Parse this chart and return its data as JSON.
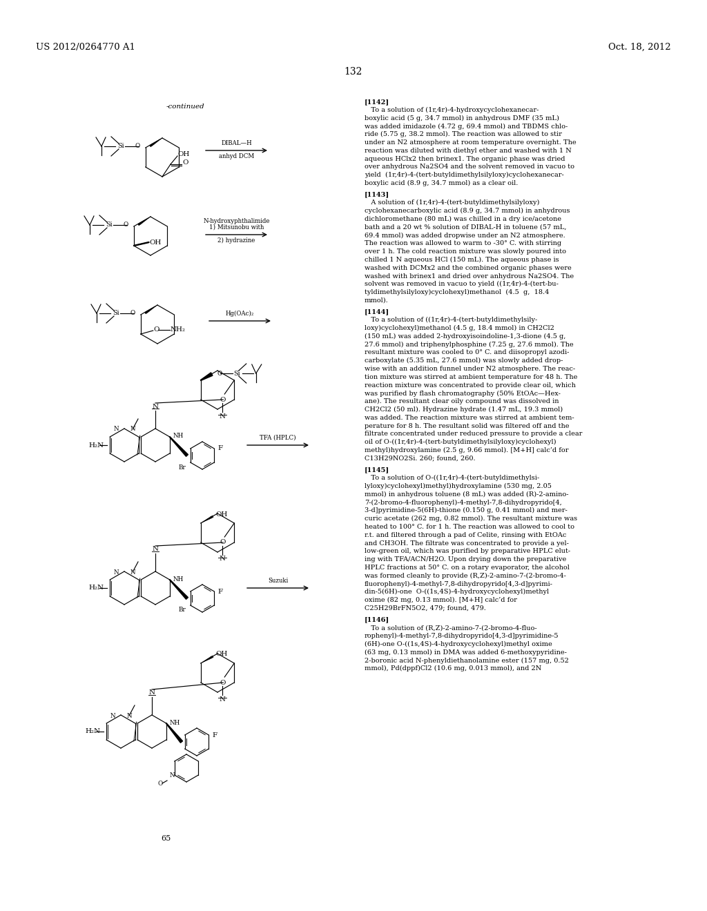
{
  "background_color": "#ffffff",
  "header_left": "US 2012/0264770 A1",
  "header_right": "Oct. 18, 2012",
  "page_number": "132",
  "continued_label": "-continued",
  "right_text": [
    {
      "tag": "[1142]",
      "body": "   To a solution of (1r,4r)-4-hydroxycyclohexanecar-\nboxylic acid (5 g, 34.7 mmol) in anhydrous DMF (35 mL)\nwas added imidazole (4.72 g, 69.4 mmol) and TBDMS chlo-\nride (5.75 g, 38.2 mmol). The reaction was allowed to stir\nunder an N2 atmosphere at room temperature overnight. The\nreaction was diluted with diethyl ether and washed with 1 N\naqueous HClx2 then brinex1. The organic phase was dried\nover anhydrous Na2SO4 and the solvent removed in vacuo to\nyield  (1r,4r)-4-(tert-butyldimethylsilyloxy)cyclohexanecar-\nboxylic acid (8.9 g, 34.7 mmol) as a clear oil."
    },
    {
      "tag": "[1143]",
      "body": "   A solution of (1r,4r)-4-(tert-butyldimethylsilyloxy)\ncyclohexanecarboxylic acid (8.9 g, 34.7 mmol) in anhydrous\ndichloromethane (80 mL) was chilled in a dry ice/acetone\nbath and a 20 wt % solution of DIBAL-H in toluene (57 mL,\n69.4 mmol) was added dropwise under an N2 atmosphere.\nThe reaction was allowed to warm to -30° C. with stirring\nover 1 h. The cold reaction mixture was slowly poured into\nchilled 1 N aqueous HCl (150 mL). The aqueous phase is\nwashed with DCMx2 and the combined organic phases were\nwashed with brinex1 and dried over anhydrous Na2SO4. The\nsolvent was removed in vacuo to yield ((1r,4r)-4-(tert-bu-\ntyldimethylsilyloxy)cyclohexyl)methanol  (4.5  g,  18.4\nmmol)."
    },
    {
      "tag": "[1144]",
      "body": "   To a solution of ((1r,4r)-4-(tert-butyldimethylsily-\nloxy)cyclohexyl)methanol (4.5 g, 18.4 mmol) in CH2Cl2\n(150 mL) was added 2-hydroxyisoindoline-1,3-dione (4.5 g,\n27.6 mmol) and triphenylphosphine (7.25 g, 27.6 mmol). The\nresultant mixture was cooled to 0° C. and diisopropyl azodi-\ncarboxylate (5.35 mL, 27.6 mmol) was slowly added drop-\nwise with an addition funnel under N2 atmosphere. The reac-\ntion mixture was stirred at ambient temperature for 48 h. The\nreaction mixture was concentrated to provide clear oil, which\nwas purified by flash chromatography (50% EtOAc—Hex-\nane). The resultant clear oily compound was dissolved in\nCH2Cl2 (50 ml). Hydrazine hydrate (1.47 mL, 19.3 mmol)\nwas added. The reaction mixture was stirred at ambient tem-\nperature for 8 h. The resultant solid was filtered off and the\nfiltrate concentrated under reduced pressure to provide a clear\noil of O-((1r,4r)-4-(tert-butyldimethylsilyloxy)cyclohexyl)\nmethyl)hydroxylamine (2.5 g, 9.66 mmol). [M+H] calc’d for\nC13H29NO2Si. 260; found, 260."
    },
    {
      "tag": "[1145]",
      "body": "   To a solution of O-((1r,4r)-4-(tert-butyldimethylsi-\nlyloxy)cyclohexyl)methyl)hydroxylamine (530 mg, 2.05\nmmol) in anhydrous toluene (8 mL) was added (R)-2-amino-\n7-(2-bromo-4-fluorophenyl)-4-methyl-7,8-dihydropyrido[4,\n3-d]pyrimidine-5(6H)-thione (0.150 g, 0.41 mmol) and mer-\ncuric acetate (262 mg, 0.82 mmol). The resultant mixture was\nheated to 100° C. for 1 h. The reaction was allowed to cool to\nr.t. and filtered through a pad of Celite, rinsing with EtOAc\nand CH3OH. The filtrate was concentrated to provide a yel-\nlow-green oil, which was purified by preparative HPLC elut-\ning with TFA/ACN/H2O. Upon drying down the preparative\nHPLC fractions at 50° C. on a rotary evaporator, the alcohol\nwas formed cleanly to provide (R,Z)-2-amino-7-(2-bromo-4-\nfluorophenyl)-4-methyl-7,8-dihydropyrido[4,3-d]pyrimi-\ndin-5(6H)-one  O-((1s,4S)-4-hydroxycyclohexyl)methyl\noxime (82 mg, 0.13 mmol). [M+H] calc’d for\nC25H29BrFN5O2, 479; found, 479."
    },
    {
      "tag": "[1146]",
      "body": "   To a solution of (R,Z)-2-amino-7-(2-bromo-4-fluo-\nrophenyl)-4-methyl-7,8-dihydropyrido[4,3-d]pyrimidine-5\n(6H)-one O-((1s,4S)-4-hydroxycyclohexyl)methyl oxime\n(63 mg, 0.13 mmol) in DMA was added 6-methoxypyridine-\n2-boronic acid N-phenyldiethanolamine ester (157 mg, 0.52\nmmol), Pd(dppf)Cl2 (10.6 mg, 0.013 mmol), and 2N"
    }
  ]
}
